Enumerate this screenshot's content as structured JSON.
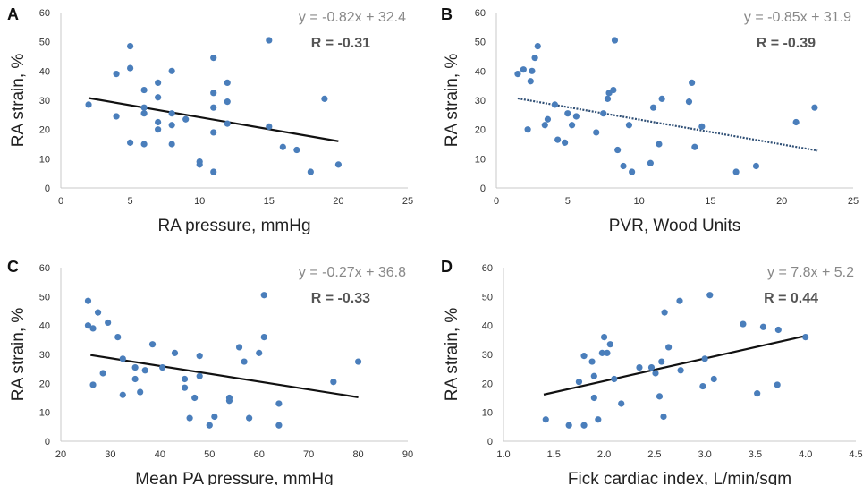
{
  "figure": {
    "ylabel": "RA strain, %",
    "colors": {
      "point": "#4a7ebb",
      "trend": "#111111",
      "axis": "#c8c8c8",
      "equation": "#888888",
      "r": "#555555",
      "text": "#333333"
    }
  },
  "chart_data": [
    {
      "panel": "A",
      "type": "scatter",
      "xlabel": "RA pressure, mmHg",
      "ylabel": "RA strain, %",
      "xlim": [
        0,
        25
      ],
      "ylim": [
        0,
        60
      ],
      "xticks": [
        0,
        5,
        10,
        15,
        20,
        25
      ],
      "yticks": [
        0,
        10,
        20,
        30,
        40,
        50,
        60
      ],
      "equation": "y = -0.82x + 32.4",
      "r_label": "R = -0.31",
      "trendline": {
        "slope": -0.82,
        "intercept": 32.4,
        "x_range": [
          2,
          20
        ],
        "style": "solid"
      },
      "points": [
        [
          2,
          28.5
        ],
        [
          4,
          39
        ],
        [
          4,
          24.5
        ],
        [
          5,
          48.5
        ],
        [
          5,
          41
        ],
        [
          5,
          15.5
        ],
        [
          6,
          33.5
        ],
        [
          6,
          27.5
        ],
        [
          6,
          25.5
        ],
        [
          6,
          15
        ],
        [
          7,
          36
        ],
        [
          7,
          31
        ],
        [
          7,
          22.5
        ],
        [
          7,
          20
        ],
        [
          8,
          40
        ],
        [
          8,
          25.5
        ],
        [
          8,
          21.5
        ],
        [
          8,
          15
        ],
        [
          9,
          23.5
        ],
        [
          10,
          9
        ],
        [
          10,
          8
        ],
        [
          11,
          44.5
        ],
        [
          11,
          32.5
        ],
        [
          11,
          27.5
        ],
        [
          11,
          19
        ],
        [
          11,
          5.5
        ],
        [
          12,
          36
        ],
        [
          12,
          29.5
        ],
        [
          12,
          22
        ],
        [
          15,
          50.5
        ],
        [
          15,
          21
        ],
        [
          16,
          14
        ],
        [
          17,
          13
        ],
        [
          18,
          5.5
        ],
        [
          19,
          30.5
        ],
        [
          20,
          8
        ]
      ]
    },
    {
      "panel": "B",
      "type": "scatter",
      "xlabel": "PVR, Wood Units",
      "ylabel": "RA strain, %",
      "xlim": [
        0,
        25
      ],
      "ylim": [
        0,
        60
      ],
      "xticks": [
        0,
        5,
        10,
        15,
        20,
        25
      ],
      "yticks": [
        0,
        10,
        20,
        30,
        40,
        50,
        60
      ],
      "equation": "y = -0.85x + 31.9",
      "r_label": "R = -0.39",
      "trendline": {
        "slope": -0.85,
        "intercept": 31.9,
        "x_range": [
          1.5,
          22.5
        ],
        "style": "dotted"
      },
      "points": [
        [
          1.5,
          39
        ],
        [
          1.9,
          40.5
        ],
        [
          2.2,
          20
        ],
        [
          2.4,
          36.5
        ],
        [
          2.5,
          40
        ],
        [
          2.7,
          44.5
        ],
        [
          2.9,
          48.5
        ],
        [
          3.4,
          21.5
        ],
        [
          3.6,
          23.5
        ],
        [
          4.1,
          28.5
        ],
        [
          4.3,
          16.5
        ],
        [
          4.8,
          15.5
        ],
        [
          5,
          25.5
        ],
        [
          5.3,
          21.5
        ],
        [
          5.6,
          24.5
        ],
        [
          7,
          19
        ],
        [
          7.5,
          25.5
        ],
        [
          7.8,
          30.5
        ],
        [
          7.9,
          32.5
        ],
        [
          8.2,
          33.5
        ],
        [
          8.3,
          50.5
        ],
        [
          8.5,
          13
        ],
        [
          8.9,
          7.5
        ],
        [
          9.3,
          21.5
        ],
        [
          9.5,
          5.5
        ],
        [
          10.8,
          8.5
        ],
        [
          11,
          27.5
        ],
        [
          11.4,
          15
        ],
        [
          11.6,
          30.5
        ],
        [
          13.5,
          29.5
        ],
        [
          13.7,
          36
        ],
        [
          13.9,
          14
        ],
        [
          14.4,
          21
        ],
        [
          16.8,
          5.5
        ],
        [
          18.2,
          7.5
        ],
        [
          21,
          22.5
        ],
        [
          22.3,
          27.5
        ]
      ]
    },
    {
      "panel": "C",
      "type": "scatter",
      "xlabel": "Mean PA pressure, mmHg",
      "ylabel": "RA strain, %",
      "xlim": [
        20,
        90
      ],
      "ylim": [
        0,
        60
      ],
      "xticks": [
        20,
        30,
        40,
        50,
        60,
        70,
        80,
        90
      ],
      "yticks": [
        0,
        10,
        20,
        30,
        40,
        50,
        60
      ],
      "equation": "y = -0.27x + 36.8",
      "r_label": "R = -0.33",
      "trendline": {
        "slope": -0.27,
        "intercept": 36.8,
        "x_range": [
          26,
          80
        ],
        "style": "solid"
      },
      "points": [
        [
          25.5,
          48.5
        ],
        [
          25.5,
          40
        ],
        [
          26.5,
          39
        ],
        [
          26.5,
          19.5
        ],
        [
          27.5,
          44.5
        ],
        [
          28.5,
          23.5
        ],
        [
          29.5,
          41
        ],
        [
          31.5,
          36
        ],
        [
          32.5,
          28.5
        ],
        [
          32.5,
          16
        ],
        [
          35,
          25.5
        ],
        [
          35,
          21.5
        ],
        [
          36,
          17
        ],
        [
          37,
          24.5
        ],
        [
          38.5,
          33.5
        ],
        [
          40.5,
          25.5
        ],
        [
          43,
          30.5
        ],
        [
          45,
          21.5
        ],
        [
          45,
          18.5
        ],
        [
          46,
          8
        ],
        [
          47,
          15
        ],
        [
          48,
          29.5
        ],
        [
          48,
          22.5
        ],
        [
          50,
          5.5
        ],
        [
          51,
          8.5
        ],
        [
          54,
          15
        ],
        [
          54,
          14
        ],
        [
          56,
          32.5
        ],
        [
          57,
          27.5
        ],
        [
          58,
          8
        ],
        [
          60,
          30.5
        ],
        [
          61,
          50.5
        ],
        [
          61,
          36
        ],
        [
          64,
          13
        ],
        [
          64,
          5.5
        ],
        [
          75,
          20.5
        ],
        [
          80,
          27.5
        ]
      ]
    },
    {
      "panel": "D",
      "type": "scatter",
      "xlabel": "Fick cardiac index, L/min/sqm",
      "ylabel": "RA strain, %",
      "xlim": [
        1.0,
        4.5
      ],
      "ylim": [
        0,
        60
      ],
      "xticks": [
        "1.0",
        "1.5",
        "2.0",
        "2.5",
        "3.0",
        "3.5",
        "4.0",
        "4.5"
      ],
      "yticks": [
        0,
        10,
        20,
        30,
        40,
        50,
        60
      ],
      "equation": "y = 7.8x + 5.2",
      "r_label": "R = 0.44",
      "trendline": {
        "slope": 7.8,
        "intercept": 5.2,
        "x_range": [
          1.4,
          4.0
        ],
        "style": "solid"
      },
      "points": [
        [
          1.42,
          7.5
        ],
        [
          1.65,
          5.5
        ],
        [
          1.75,
          20.5
        ],
        [
          1.8,
          29.5
        ],
        [
          1.8,
          5.5
        ],
        [
          1.88,
          27.5
        ],
        [
          1.9,
          15
        ],
        [
          1.9,
          22.5
        ],
        [
          1.94,
          7.5
        ],
        [
          1.98,
          30.5
        ],
        [
          2.0,
          36
        ],
        [
          2.03,
          30.5
        ],
        [
          2.06,
          33.5
        ],
        [
          2.1,
          21.5
        ],
        [
          2.17,
          13
        ],
        [
          2.35,
          25.5
        ],
        [
          2.47,
          25.5
        ],
        [
          2.51,
          23.5
        ],
        [
          2.55,
          15.5
        ],
        [
          2.57,
          27.5
        ],
        [
          2.59,
          8.5
        ],
        [
          2.6,
          44.5
        ],
        [
          2.64,
          32.5
        ],
        [
          2.75,
          48.5
        ],
        [
          2.76,
          24.5
        ],
        [
          2.98,
          19
        ],
        [
          3.0,
          28.5
        ],
        [
          3.05,
          50.5
        ],
        [
          3.09,
          21.5
        ],
        [
          3.38,
          40.5
        ],
        [
          3.52,
          16.5
        ],
        [
          3.58,
          39.5
        ],
        [
          3.72,
          19.5
        ],
        [
          3.73,
          38.5
        ],
        [
          4.0,
          36
        ]
      ]
    }
  ]
}
